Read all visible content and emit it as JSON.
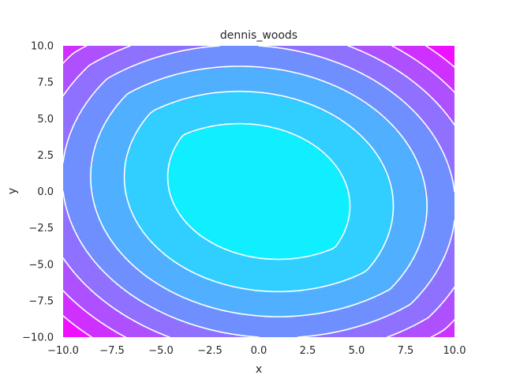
{
  "chart_data": {
    "type": "contour",
    "title": "dennis_woods",
    "xlabel": "x",
    "ylabel": "y",
    "xlim": [
      -10,
      10
    ],
    "ylim": [
      -10,
      10
    ],
    "x_ticks": [
      -10,
      -7.5,
      -5,
      -2.5,
      0,
      2.5,
      5,
      7.5,
      10
    ],
    "y_ticks": [
      -10,
      -7.5,
      -5,
      -2.5,
      0,
      2.5,
      5,
      7.5,
      10
    ],
    "x_tick_labels": [
      "−10.0",
      "−7.5",
      "−5.0",
      "−2.5",
      "0.0",
      "2.5",
      "5.0",
      "7.5",
      "10.0"
    ],
    "y_tick_labels": [
      "−10.0",
      "−7.5",
      "−5.0",
      "−2.5",
      "0.0",
      "2.5",
      "5.0",
      "7.5",
      "10.0"
    ],
    "colormap": "cool",
    "contour_line_color": "#ffffff",
    "grid": false,
    "function": "dennis_woods",
    "centers": [
      [
        1,
        1
      ],
      [
        -1,
        -1
      ]
    ]
  }
}
